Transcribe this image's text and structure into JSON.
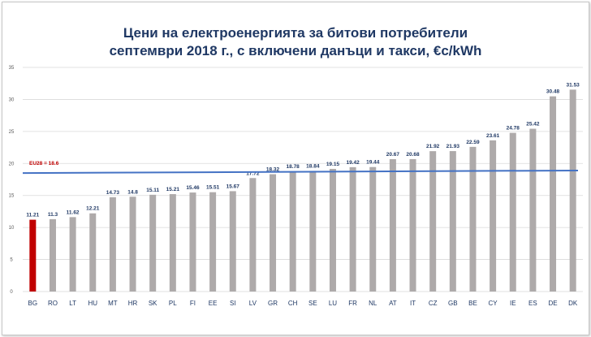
{
  "chart_data": {
    "type": "bar",
    "title_line1": "Цени на електроенергията за битови потребители",
    "title_line2": "септември 2018 г., с включени данъци и такси, €c/kWh",
    "xlabel": "",
    "ylabel": "",
    "ylim": [
      0,
      35
    ],
    "yticks": [
      "0",
      "5",
      "10",
      "15",
      "20",
      "25",
      "30",
      "35"
    ],
    "categories": [
      "BG",
      "RO",
      "LT",
      "HU",
      "MT",
      "HR",
      "SK",
      "PL",
      "FI",
      "EE",
      "SI",
      "LV",
      "GR",
      "CH",
      "SE",
      "LU",
      "FR",
      "NL",
      "AT",
      "IT",
      "CZ",
      "GB",
      "BE",
      "CY",
      "IE",
      "ES",
      "DE",
      "DK"
    ],
    "values": [
      11.21,
      11.3,
      11.62,
      12.21,
      14.73,
      14.8,
      15.11,
      15.21,
      15.46,
      15.51,
      15.67,
      17.72,
      18.32,
      18.78,
      18.84,
      19.15,
      19.42,
      19.44,
      20.67,
      20.68,
      21.92,
      21.93,
      22.59,
      23.61,
      24.78,
      25.42,
      30.48,
      31.53
    ],
    "value_labels": [
      "11.21",
      "11.3",
      "11.62",
      "12.21",
      "14.73",
      "14.8",
      "15.11",
      "15.21",
      "15.46",
      "15.51",
      "15.67",
      "17.72",
      "18.32",
      "18.78",
      "18.84",
      "19.15",
      "19.42",
      "19.44",
      "20.67",
      "20.68",
      "21.92",
      "21.93",
      "22.59",
      "23.61",
      "24.78",
      "25.42",
      "30.48",
      "31.53"
    ],
    "highlight_category": "BG",
    "reference_line": {
      "label": "EU28 = 18.6",
      "value_start": 18.5,
      "value_end": 18.9
    },
    "colors": {
      "bar": "#aeaaaa",
      "highlight": "#c00000",
      "line": "#4472c4",
      "label": "#1f3864",
      "ref_label": "#c00000"
    },
    "grid": true
  }
}
